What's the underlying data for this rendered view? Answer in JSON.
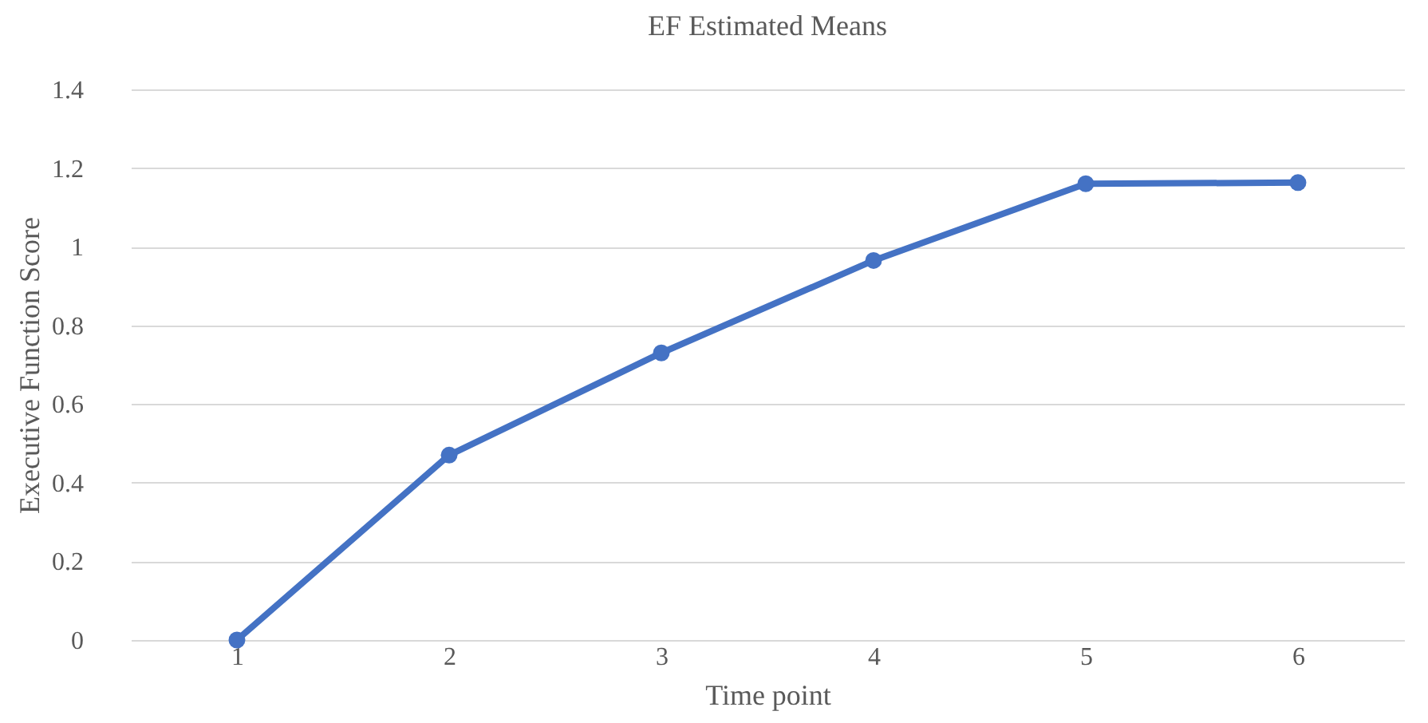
{
  "chart_data": {
    "type": "line",
    "title": "EF Estimated Means",
    "xlabel": "Time point",
    "ylabel": "Executive Function Score",
    "categories": [
      "1",
      "2",
      "3",
      "4",
      "5",
      "6"
    ],
    "series": [
      {
        "color": "#4472c4",
        "values": [
          0,
          0.47,
          0.73,
          0.965,
          1.16,
          1.163
        ]
      }
    ],
    "ylim": [
      0,
      1.4
    ],
    "yticks": [
      0,
      0.2,
      0.4,
      0.6,
      0.8,
      1,
      1.2,
      1.4
    ],
    "grid": "y",
    "marker": "circle",
    "line_style": "solid"
  }
}
